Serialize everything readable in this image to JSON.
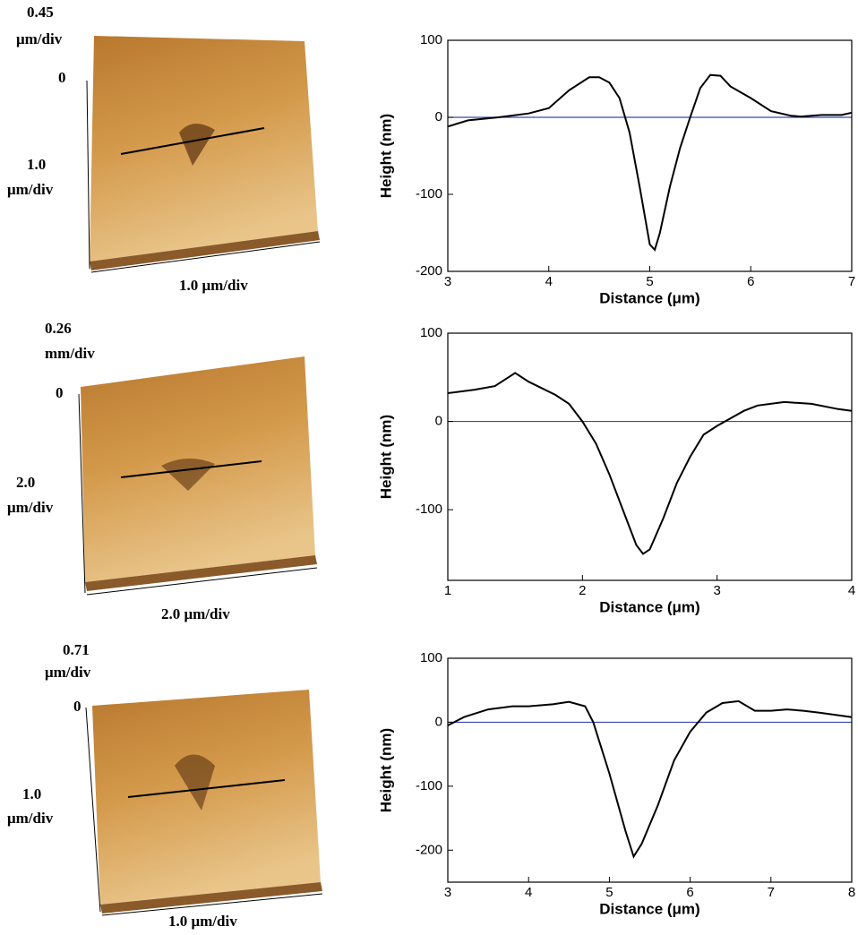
{
  "images": [
    {
      "z_scale": [
        "0.45",
        "μm/div"
      ],
      "z_zero": "0",
      "y_scale": [
        "1.0",
        "μm/div"
      ],
      "x_scale": "1.0 μm/div"
    },
    {
      "z_scale": [
        "0.26",
        "mm/div"
      ],
      "z_zero": "0",
      "y_scale": [
        "2.0",
        "μm/div"
      ],
      "x_scale": "2.0 μm/div"
    },
    {
      "z_scale": [
        "0.71",
        "μm/div"
      ],
      "z_zero": "0",
      "y_scale": [
        "1.0",
        "μm/div"
      ],
      "x_scale": "1.0 μm/div"
    }
  ],
  "chart_data": [
    {
      "type": "line",
      "x_label": "Distance (μm)",
      "y_label": "Height (nm)",
      "color": "#000000",
      "x": [
        3.0,
        3.2,
        3.5,
        3.8,
        4.0,
        4.2,
        4.4,
        4.5,
        4.6,
        4.7,
        4.8,
        4.9,
        5.0,
        5.05,
        5.1,
        5.2,
        5.3,
        5.4,
        5.5,
        5.6,
        5.7,
        5.8,
        6.0,
        6.2,
        6.4,
        6.5,
        6.7,
        6.9,
        7.0
      ],
      "values": [
        -12,
        -4,
        0,
        5,
        12,
        35,
        52,
        52,
        45,
        25,
        -20,
        -90,
        -165,
        -172,
        -150,
        -90,
        -40,
        0,
        38,
        55,
        54,
        40,
        25,
        8,
        2,
        1,
        3,
        3,
        6
      ],
      "xlim": [
        3,
        7
      ],
      "xticks": [
        3,
        4,
        5,
        6,
        7
      ],
      "ylim": [
        -200,
        100
      ],
      "yticks": [
        100,
        0,
        -100,
        -200
      ],
      "hline": {
        "value": 0,
        "color": "#3848b0"
      }
    },
    {
      "type": "line",
      "x_label": "Distance (μm)",
      "y_label": "Height (nm)",
      "color": "#000000",
      "x": [
        1.0,
        1.2,
        1.35,
        1.5,
        1.6,
        1.8,
        1.9,
        2.0,
        2.1,
        2.2,
        2.3,
        2.4,
        2.45,
        2.5,
        2.6,
        2.7,
        2.8,
        2.9,
        3.0,
        3.2,
        3.3,
        3.5,
        3.7,
        3.9,
        4.0
      ],
      "values": [
        32,
        36,
        40,
        55,
        45,
        30,
        20,
        0,
        -25,
        -60,
        -100,
        -140,
        -150,
        -145,
        -110,
        -70,
        -40,
        -15,
        -5,
        12,
        18,
        22,
        20,
        14,
        12
      ],
      "xlim": [
        1,
        4
      ],
      "xticks": [
        1,
        2,
        3,
        4
      ],
      "ylim": [
        -180,
        100
      ],
      "yticks": [
        100,
        0,
        -100
      ],
      "hline": {
        "value": 0,
        "color": "#3848b0"
      }
    },
    {
      "type": "line",
      "x_label": "Distance (μm)",
      "y_label": "Height (nm)",
      "color": "#000000",
      "x": [
        3.0,
        3.2,
        3.5,
        3.8,
        4.0,
        4.3,
        4.5,
        4.7,
        4.8,
        5.0,
        5.2,
        5.3,
        5.4,
        5.6,
        5.8,
        6.0,
        6.2,
        6.4,
        6.6,
        6.8,
        7.0,
        7.2,
        7.4,
        7.6,
        8.0
      ],
      "values": [
        -5,
        8,
        20,
        25,
        25,
        28,
        32,
        25,
        0,
        -80,
        -170,
        -210,
        -190,
        -130,
        -60,
        -15,
        15,
        30,
        33,
        18,
        18,
        20,
        18,
        15,
        8
      ],
      "xlim": [
        3,
        8
      ],
      "xticks": [
        3,
        4,
        5,
        6,
        7,
        8
      ],
      "ylim": [
        -250,
        100
      ],
      "yticks": [
        100,
        0,
        -100,
        -200
      ],
      "hline": {
        "value": 0,
        "color": "#3848b0"
      }
    }
  ]
}
